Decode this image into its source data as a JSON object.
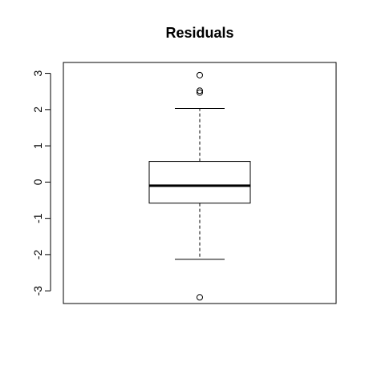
{
  "chart_data": {
    "type": "boxplot",
    "title": "Residuals",
    "xlabel": "",
    "ylabel": "",
    "ylim": [
      -3.35,
      3.3
    ],
    "yticks": [
      -3,
      -2,
      -1,
      0,
      1,
      2,
      3
    ],
    "ytick_labels": [
      "-3",
      "-2",
      "-1",
      "0",
      "1",
      "2",
      "3"
    ],
    "grid": false,
    "box": {
      "whisker_low": -2.13,
      "q1": -0.58,
      "median": -0.1,
      "q3": 0.57,
      "whisker_high": 2.03
    },
    "outliers": [
      2.95,
      2.52,
      2.47,
      -3.18
    ]
  }
}
